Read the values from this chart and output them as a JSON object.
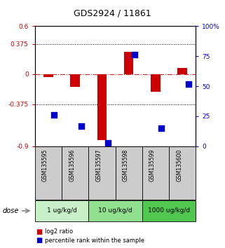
{
  "title": "GDS2924 / 11861",
  "samples": [
    "GSM135595",
    "GSM135596",
    "GSM135597",
    "GSM135598",
    "GSM135599",
    "GSM135600"
  ],
  "log2_ratio": [
    -0.04,
    -0.16,
    -0.82,
    0.28,
    -0.22,
    0.08
  ],
  "percentile_rank": [
    26,
    17,
    3,
    76,
    15,
    52
  ],
  "dose_groups": [
    {
      "label": "1 ug/kg/d",
      "samples": [
        0,
        1
      ],
      "color": "#c8f0c8"
    },
    {
      "label": "10 ug/kg/d",
      "samples": [
        2,
        3
      ],
      "color": "#90e090"
    },
    {
      "label": "1000 ug/kg/d",
      "samples": [
        4,
        5
      ],
      "color": "#50c850"
    }
  ],
  "bar_color_red": "#cc0000",
  "bar_color_blue": "#0000cc",
  "ylim_left": [
    -0.9,
    0.6
  ],
  "ylim_right": [
    0,
    100
  ],
  "yticks_left": [
    -0.9,
    -0.375,
    0,
    0.375,
    0.6
  ],
  "yticks_right": [
    0,
    25,
    50,
    75,
    100
  ],
  "ytick_labels_left": [
    "-0.9",
    "-0.375",
    "0",
    "0.375",
    "0.6"
  ],
  "ytick_labels_right": [
    "0",
    "25",
    "50",
    "75",
    "100%"
  ],
  "hlines_dotted": [
    -0.375,
    0.375
  ],
  "hline_dash": 0,
  "dose_label": "dose",
  "legend_red": "log2 ratio",
  "legend_blue": "percentile rank within the sample",
  "bar_width": 0.35,
  "dot_size": 28
}
